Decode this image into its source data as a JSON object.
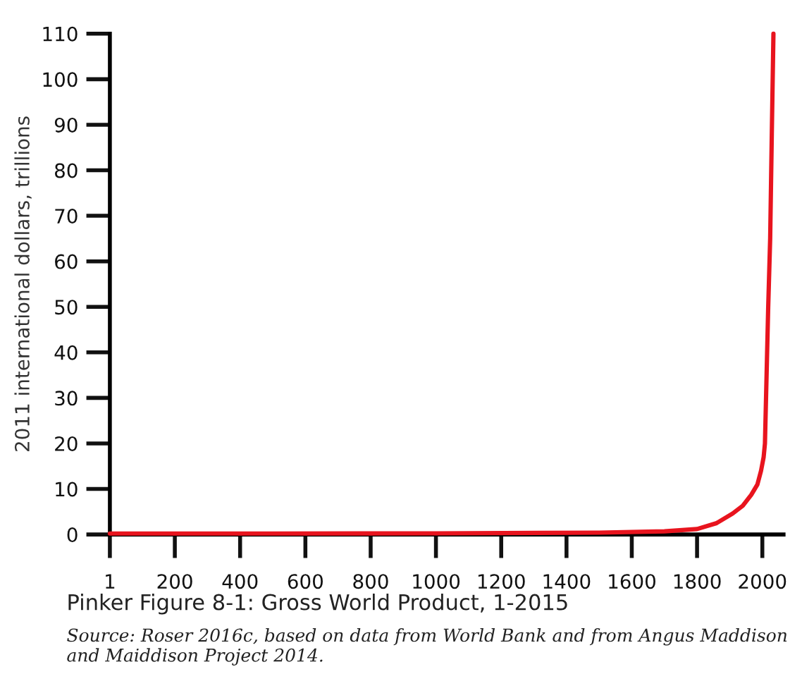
{
  "chart_data": {
    "type": "line",
    "title": "Pinker Figure 8-1: Gross World Product, 1-2015",
    "ylabel": "2011 international dollars, trillions",
    "annotations": [
      "Source: Roser 2016c, based on data from World Bank and from Angus Maddison and Maiddison Project 2014."
    ],
    "x": [
      1,
      500,
      1000,
      1500,
      1700,
      1800,
      1860,
      1909,
      1940,
      1966,
      1985,
      1996,
      2004,
      2008,
      2013,
      2018,
      2024,
      2029,
      2034
    ],
    "series": [
      {
        "color": "#e8141e",
        "values": [
          0.2,
          0.2,
          0.25,
          0.4,
          0.7,
          1.2,
          2.5,
          4.6,
          6.3,
          8.7,
          11,
          14,
          17,
          20,
          35,
          50,
          65,
          88,
          110
        ]
      }
    ],
    "xlim": [
      1,
      2065
    ],
    "ylim": [
      0,
      110
    ],
    "xticks": [
      1,
      200,
      400,
      600,
      800,
      1000,
      1200,
      1400,
      1600,
      1800,
      2000
    ],
    "yticks": [
      0,
      10,
      20,
      30,
      40,
      50,
      60,
      70,
      80,
      90,
      100,
      110
    ],
    "grid": false,
    "legend": false,
    "marker": "none",
    "line_style": "solid"
  }
}
